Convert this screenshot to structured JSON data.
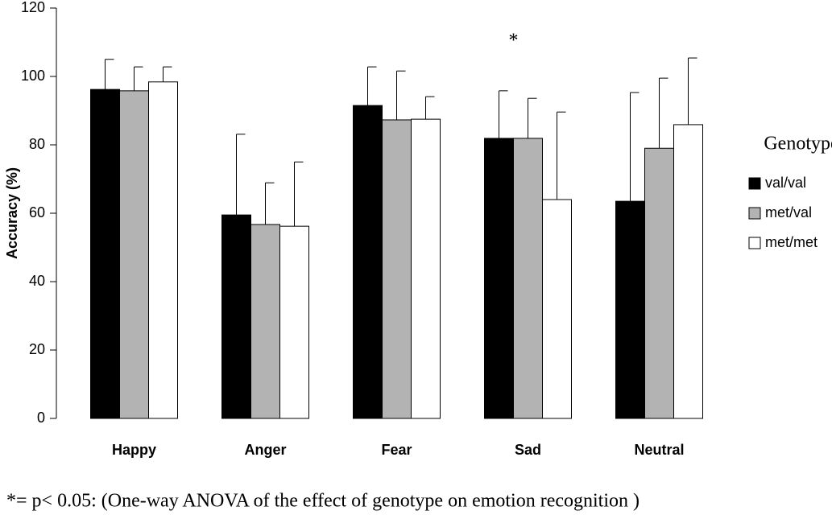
{
  "chart_data": {
    "type": "bar",
    "y_label": "Accuracy (%)",
    "categories": [
      "Happy",
      "Anger",
      "Fear",
      "Sad",
      "Neutral"
    ],
    "series": [
      {
        "name": "val/val",
        "color": "#000000",
        "values": [
          96.2,
          59.5,
          91.5,
          81.9,
          63.5
        ],
        "errors": [
          8.8,
          23.6,
          11.3,
          13.9,
          31.8
        ]
      },
      {
        "name": "met/val",
        "color": "#b3b3b3",
        "values": [
          95.8,
          56.7,
          87.3,
          81.9,
          79.0
        ],
        "errors": [
          7.0,
          12.2,
          14.3,
          11.7,
          20.5
        ]
      },
      {
        "name": "met/met",
        "color": "#ffffff",
        "values": [
          98.4,
          56.2,
          87.5,
          64.0,
          85.9
        ],
        "errors": [
          4.4,
          18.8,
          6.6,
          25.6,
          19.5
        ]
      }
    ],
    "ylim": [
      0,
      120
    ],
    "yticks": [
      0,
      20,
      40,
      60,
      80,
      100,
      120
    ],
    "legend_title": "Genotype",
    "legend_position": "right",
    "annotations": [
      {
        "text": "*",
        "category": "Sad"
      }
    ],
    "footnote": "*= p< 0.05: (One-way ANOVA of the effect of genotype on emotion recognition )"
  }
}
